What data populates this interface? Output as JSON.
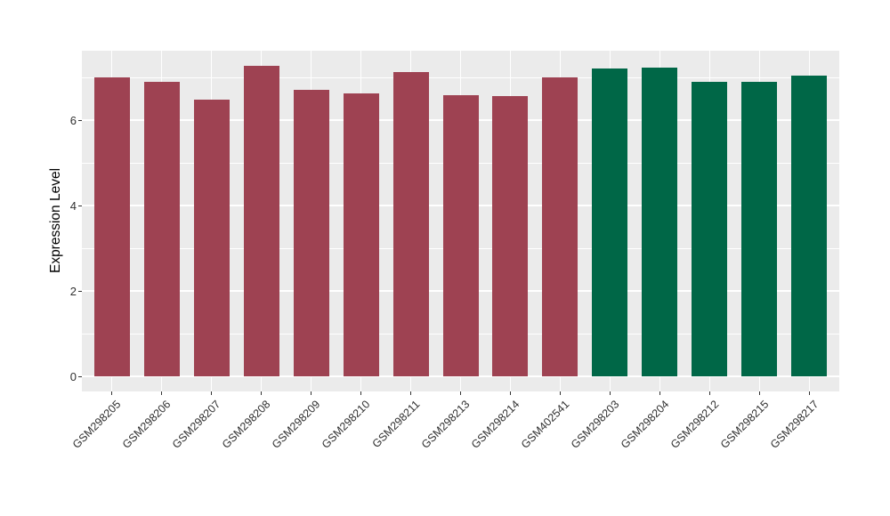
{
  "chart_data": {
    "type": "bar",
    "title": "",
    "xlabel": "",
    "ylabel": "Expression Level",
    "categories": [
      "GSM298205",
      "GSM298206",
      "GSM298207",
      "GSM298208",
      "GSM298209",
      "GSM298210",
      "GSM298211",
      "GSM298213",
      "GSM298214",
      "GSM402541",
      "GSM298203",
      "GSM298204",
      "GSM298212",
      "GSM298215",
      "GSM298217"
    ],
    "values": [
      7.0,
      6.9,
      6.48,
      7.27,
      6.71,
      6.63,
      7.13,
      6.58,
      6.56,
      7.0,
      7.21,
      7.23,
      6.9,
      6.9,
      7.04
    ],
    "bar_colors": [
      "#9E4252",
      "#9E4252",
      "#9E4252",
      "#9E4252",
      "#9E4252",
      "#9E4252",
      "#9E4252",
      "#9E4252",
      "#9E4252",
      "#9E4252",
      "#006747",
      "#006747",
      "#006747",
      "#006747",
      "#006747"
    ],
    "group_colors": {
      "group1": "#9E4252",
      "group2": "#006747"
    },
    "ylim": [
      0,
      7.63
    ],
    "yticks": [
      0,
      2,
      4,
      6
    ],
    "ytick_labels": [
      "0",
      "2",
      "4",
      "6"
    ],
    "yticks_minor": [
      1,
      3,
      5,
      7
    ],
    "x_tick_angle": 45,
    "grid": true,
    "legend_position": "none",
    "panel_bg": "#EBEBEB",
    "grid_color": "#FFFFFF",
    "tick_color": "#333333"
  }
}
